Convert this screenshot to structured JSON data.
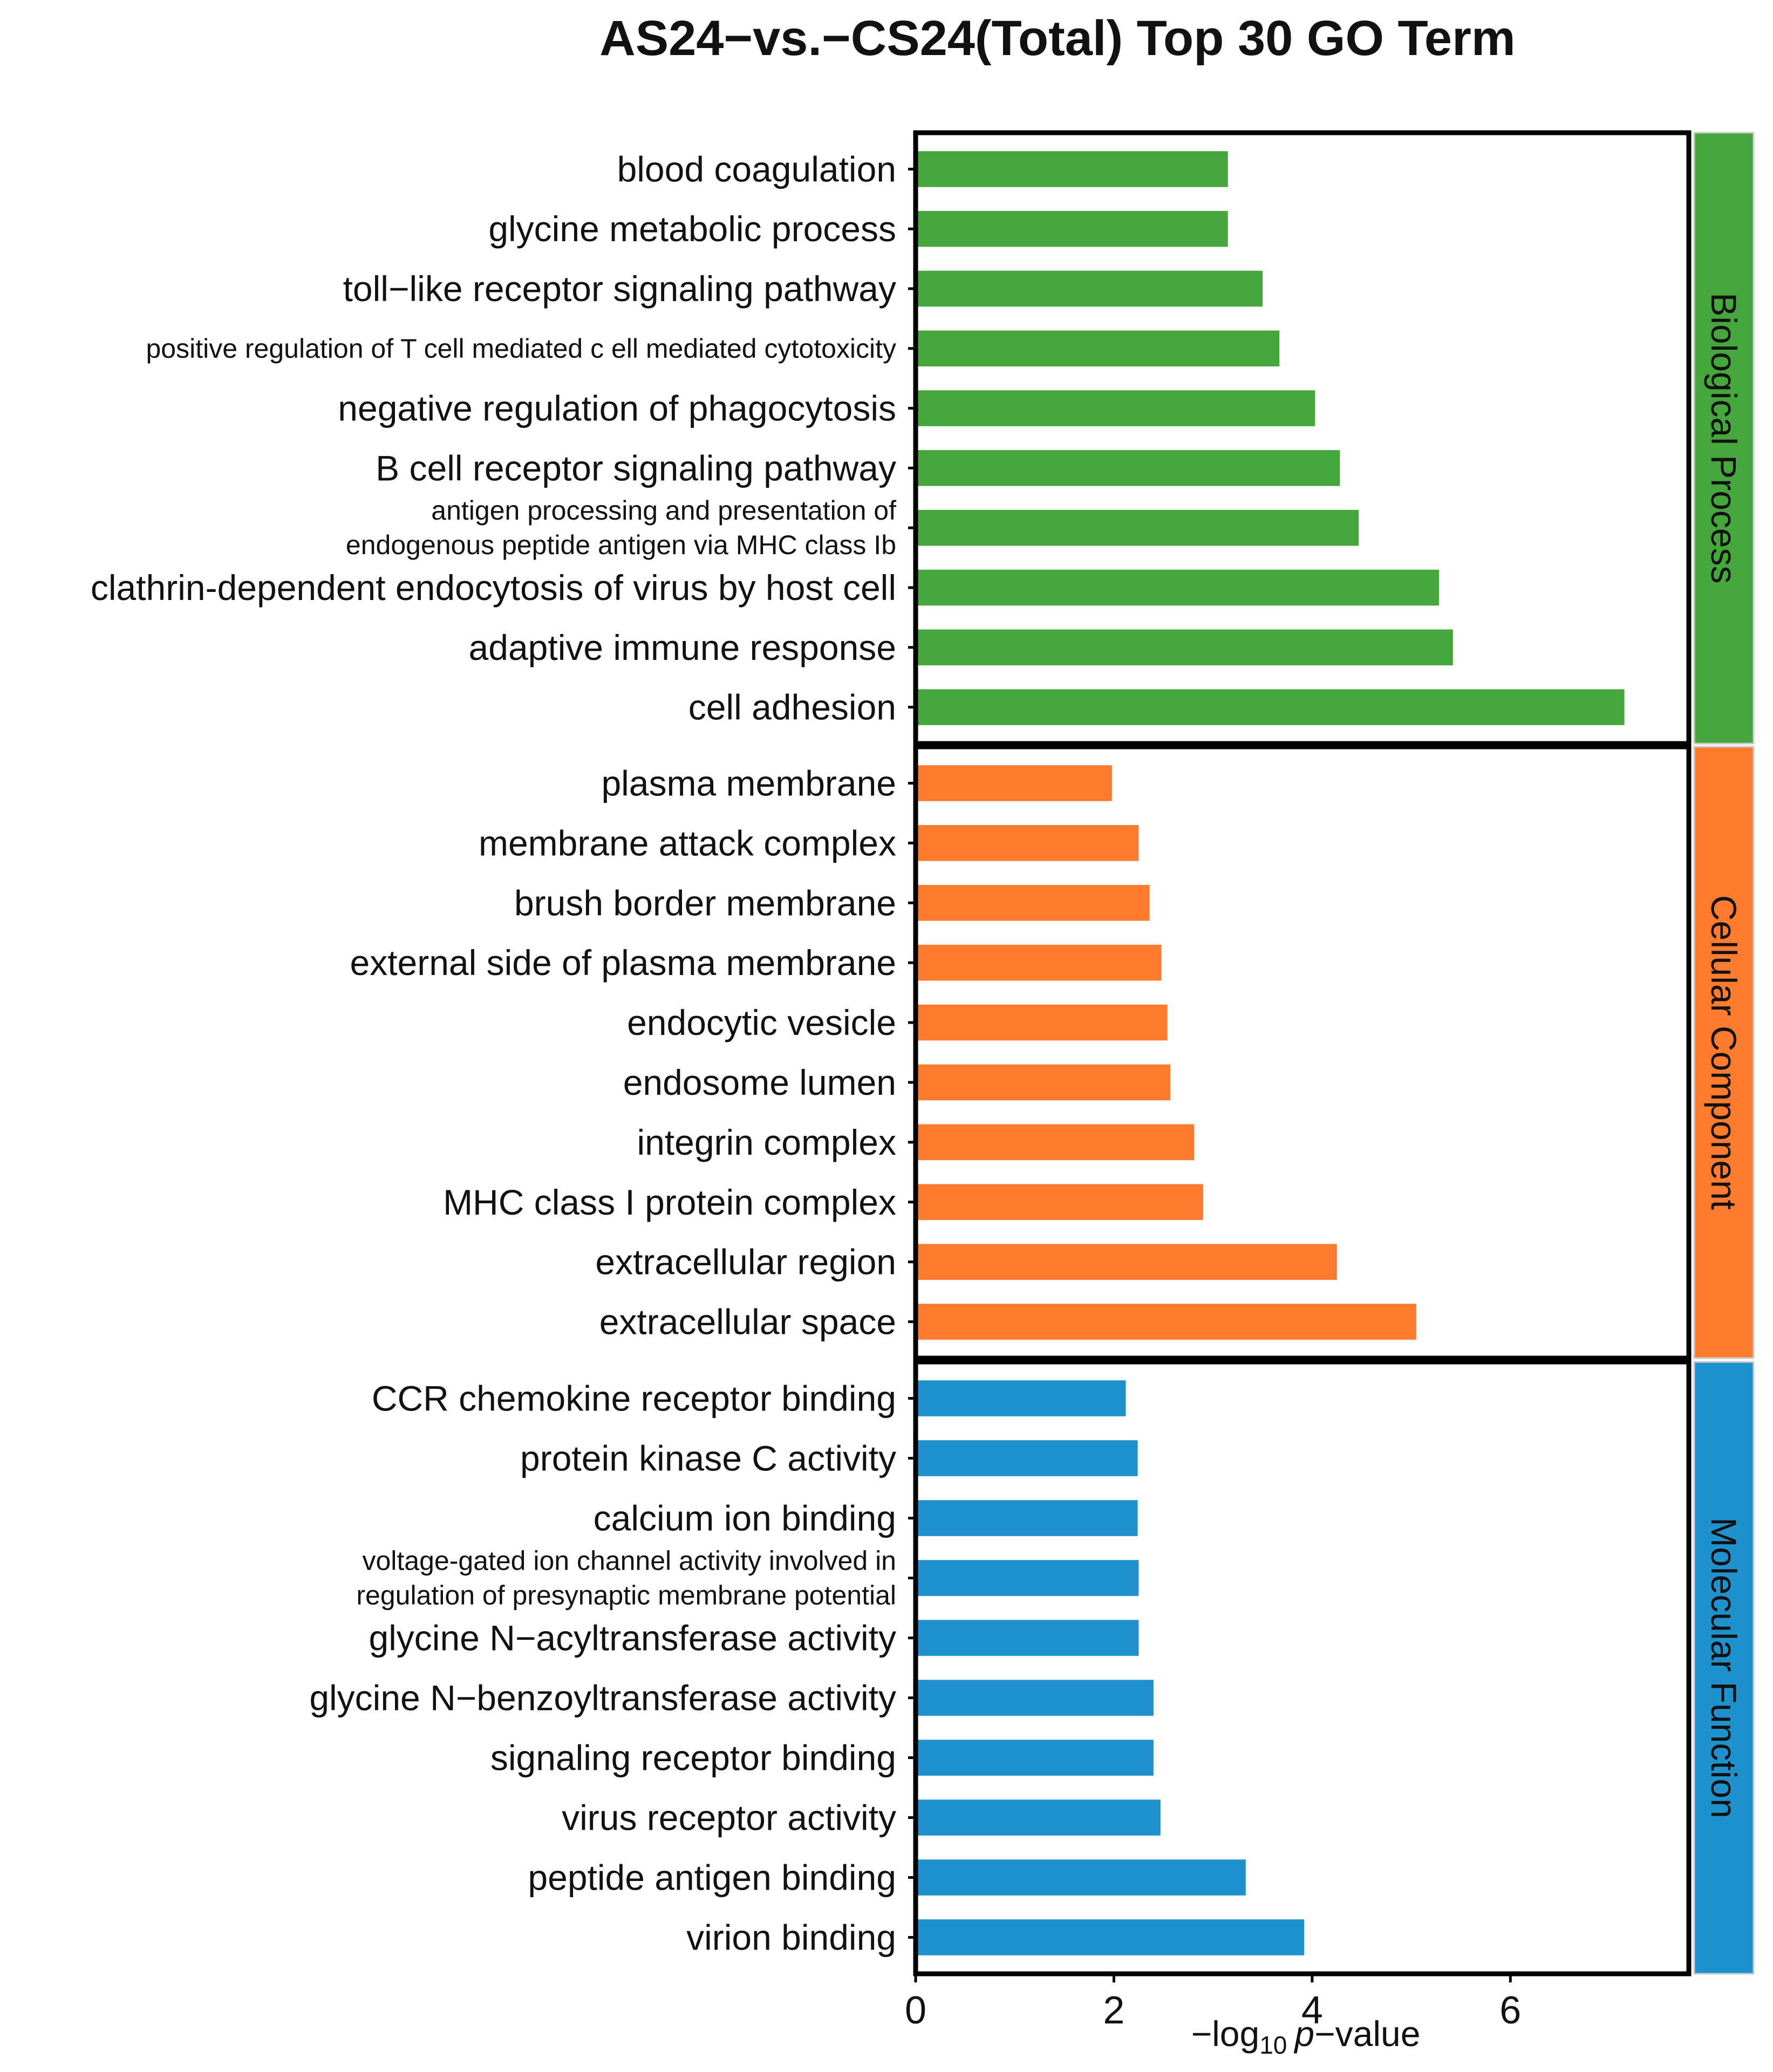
{
  "chart_data": {
    "type": "bar",
    "orientation": "horizontal",
    "title": "AS24−vs.−CS24(Total) Top 30 GO Term",
    "xlabel": "−log10 p−value",
    "xlabel_parts": {
      "prefix": "−log",
      "subscript": "10",
      "italic": "p",
      "suffix": "−value"
    },
    "xlim": [
      0,
      7.8
    ],
    "xticks": [
      0,
      2,
      4,
      6
    ],
    "grid": false,
    "panels": [
      {
        "name": "Biological Process",
        "color": "#45a63c",
        "categories": [
          "blood coagulation",
          "glycine metabolic process",
          "toll−like receptor signaling pathway",
          "positive regulation of T cell mediated c ell mediated cytotoxicity",
          "negative regulation of phagocytosis",
          "B cell receptor signaling pathway",
          "antigen processing and presentation of\nendogenous peptide antigen via MHC class Ib",
          "clathrin-dependent endocytosis of virus by host cell",
          "adaptive immune response",
          "cell adhesion"
        ],
        "values": [
          3.15,
          3.15,
          3.5,
          3.67,
          4.03,
          4.28,
          4.47,
          5.28,
          5.42,
          7.15
        ]
      },
      {
        "name": "Cellular Component",
        "color": "#fd7b2e",
        "categories": [
          "plasma membrane",
          "membrane attack complex",
          "brush border membrane",
          "external side of plasma membrane",
          "endocytic vesicle",
          "endosome lumen",
          "integrin complex",
          "MHC class I protein complex",
          "extracellular region",
          "extracellular space"
        ],
        "values": [
          1.98,
          2.25,
          2.36,
          2.48,
          2.54,
          2.57,
          2.81,
          2.9,
          4.25,
          5.05
        ]
      },
      {
        "name": "Molecular Function",
        "color": "#1f92cd",
        "categories": [
          "CCR chemokine receptor binding",
          "protein kinase C activity",
          "calcium ion binding",
          "voltage-gated ion channel activity involved in\nregulation of presynaptic membrane potential",
          "glycine N−acyltransferase activity",
          "glycine N−benzoyltransferase activity",
          "signaling receptor binding",
          "virus receptor activity",
          "peptide antigen binding",
          "virion binding"
        ],
        "values": [
          2.12,
          2.24,
          2.24,
          2.25,
          2.25,
          2.4,
          2.4,
          2.47,
          3.33,
          3.92
        ]
      }
    ]
  }
}
